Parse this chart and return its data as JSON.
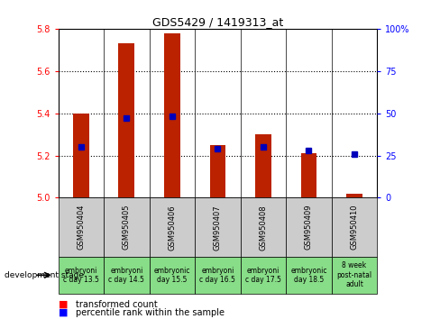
{
  "title": "GDS5429 / 1419313_at",
  "samples": [
    "GSM950404",
    "GSM950405",
    "GSM950406",
    "GSM950407",
    "GSM950408",
    "GSM950409",
    "GSM950410"
  ],
  "stage_labels": [
    "embryoni\nc day 13.5",
    "embryoni\nc day 14.5",
    "embryonic\nday 15.5",
    "embryoni\nc day 16.5",
    "embryoni\nc day 17.5",
    "embryonic\nday 18.5",
    "8 week\npost-natal\nadult"
  ],
  "transformed_count": [
    5.4,
    5.73,
    5.78,
    5.25,
    5.3,
    5.21,
    5.02
  ],
  "percentile_rank": [
    30,
    47,
    48,
    29,
    30,
    28,
    26
  ],
  "ymin": 5.0,
  "ymax": 5.8,
  "y_ticks_left": [
    5.0,
    5.2,
    5.4,
    5.6,
    5.8
  ],
  "y_ticks_right": [
    0,
    25,
    50,
    75,
    100
  ],
  "bar_color": "#bb2200",
  "dot_color": "#0000bb",
  "bar_baseline": 5.0,
  "sample_box_color": "#cccccc",
  "stage_box_color": "#88dd88",
  "plot_bg": "#ffffff",
  "bar_width": 0.35,
  "title_fontsize": 9,
  "tick_fontsize": 7,
  "sample_fontsize": 6,
  "stage_fontsize": 5.5,
  "legend_fontsize": 7
}
